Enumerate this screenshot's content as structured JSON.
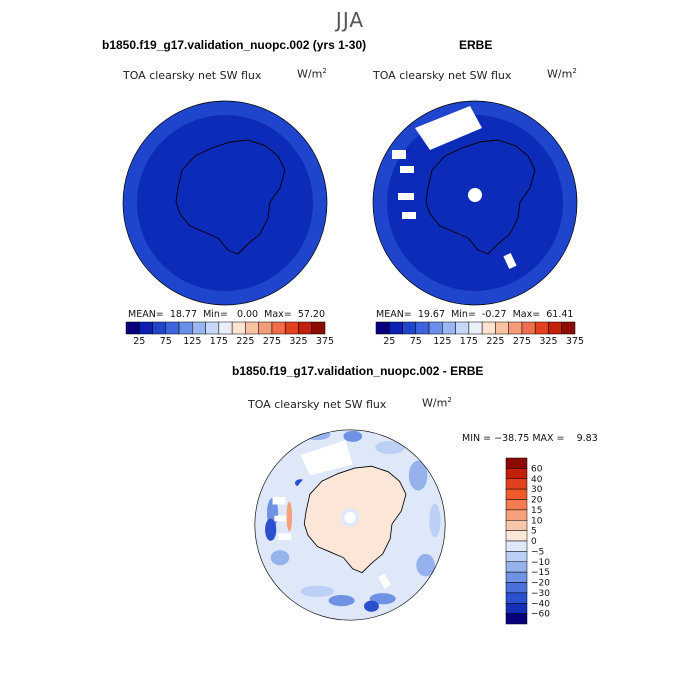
{
  "season": "JJA",
  "variable_label": "TOA clearsky net SW flux",
  "units_label": "W/m",
  "units_sup": "2",
  "colors": {
    "deep_blue": "#0c2bb8",
    "ring_blue": "#1f45cc",
    "land_outline": "#000000"
  },
  "chart_data": [
    {
      "type": "heatmap",
      "projection": "south-polar-stereographic",
      "title": "b1850.f19_g17.validation_nuopc.002 (yrs 1-30)",
      "stats": {
        "mean": "18.77",
        "min": "0.00",
        "max": "57.20"
      },
      "stat_labels": {
        "mean": "MEAN=",
        "min": "Min=",
        "max": "Max="
      },
      "colorbar": {
        "ticks": [
          "25",
          "75",
          "125",
          "175",
          "225",
          "275",
          "325",
          "375"
        ],
        "colors": [
          "#08007a",
          "#0b1fb0",
          "#1f45cc",
          "#3c64dd",
          "#6a8de8",
          "#9ab6f0",
          "#c7d7f6",
          "#eaf0fb",
          "#fde3d2",
          "#f8c3a3",
          "#f59b77",
          "#ef6d4a",
          "#e2401f",
          "#c41f0a",
          "#8d0a00"
        ]
      }
    },
    {
      "type": "heatmap",
      "projection": "south-polar-stereographic",
      "title": "ERBE",
      "stats": {
        "mean": "19.67",
        "min": "-0.27",
        "max": "61.41"
      },
      "stat_labels": {
        "mean": "MEAN=",
        "min": "Min=",
        "max": "Max="
      },
      "colorbar": {
        "ticks": [
          "25",
          "75",
          "125",
          "175",
          "225",
          "275",
          "325",
          "375"
        ],
        "colors": [
          "#08007a",
          "#0b1fb0",
          "#1f45cc",
          "#3c64dd",
          "#6a8de8",
          "#9ab6f0",
          "#c7d7f6",
          "#eaf0fb",
          "#fde3d2",
          "#f8c3a3",
          "#f59b77",
          "#ef6d4a",
          "#e2401f",
          "#c41f0a",
          "#8d0a00"
        ]
      }
    },
    {
      "type": "heatmap",
      "projection": "south-polar-stereographic",
      "title": "b1850.f19_g17.validation_nuopc.002 - ERBE",
      "stats": {
        "min": "−38.75",
        "max": "9.83"
      },
      "stat_labels": {
        "min": "MIN =",
        "max": "MAX ="
      },
      "colorbar": {
        "ticks": [
          "60",
          "40",
          "30",
          "20",
          "15",
          "10",
          "5",
          "0",
          "−5",
          "−10",
          "−15",
          "−20",
          "−30",
          "−40",
          "−60"
        ],
        "colors": [
          "#8d0a00",
          "#c41f0a",
          "#e2401f",
          "#f05a28",
          "#f47a4f",
          "#f7a07c",
          "#f9c6ab",
          "#fbe6d8",
          "#dfe8f8",
          "#bccff4",
          "#96b2ec",
          "#6f92e4",
          "#4a70da",
          "#2a4fcf",
          "#1530b8",
          "#08007a"
        ]
      }
    }
  ]
}
